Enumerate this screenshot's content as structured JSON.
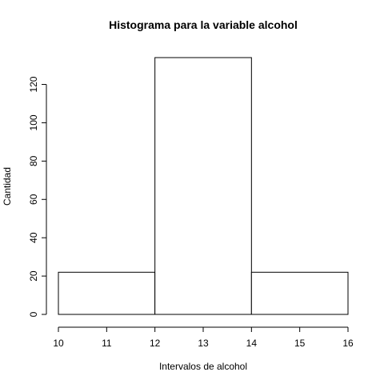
{
  "chart_data": {
    "type": "bar",
    "title": "Histograma para la variable alcohol",
    "xlabel": "Intervalos de alcohol",
    "ylabel": "Cantidad",
    "bins": [
      {
        "start": 10,
        "end": 12,
        "count": 22
      },
      {
        "start": 12,
        "end": 14,
        "count": 134
      },
      {
        "start": 14,
        "end": 16,
        "count": 22
      }
    ],
    "xlim": [
      10,
      16
    ],
    "ylim": [
      0,
      134
    ],
    "x_ticks": [
      10,
      11,
      12,
      13,
      14,
      15,
      16
    ],
    "y_ticks": [
      0,
      20,
      40,
      60,
      80,
      100,
      120
    ],
    "grid": false,
    "legend": "none"
  }
}
